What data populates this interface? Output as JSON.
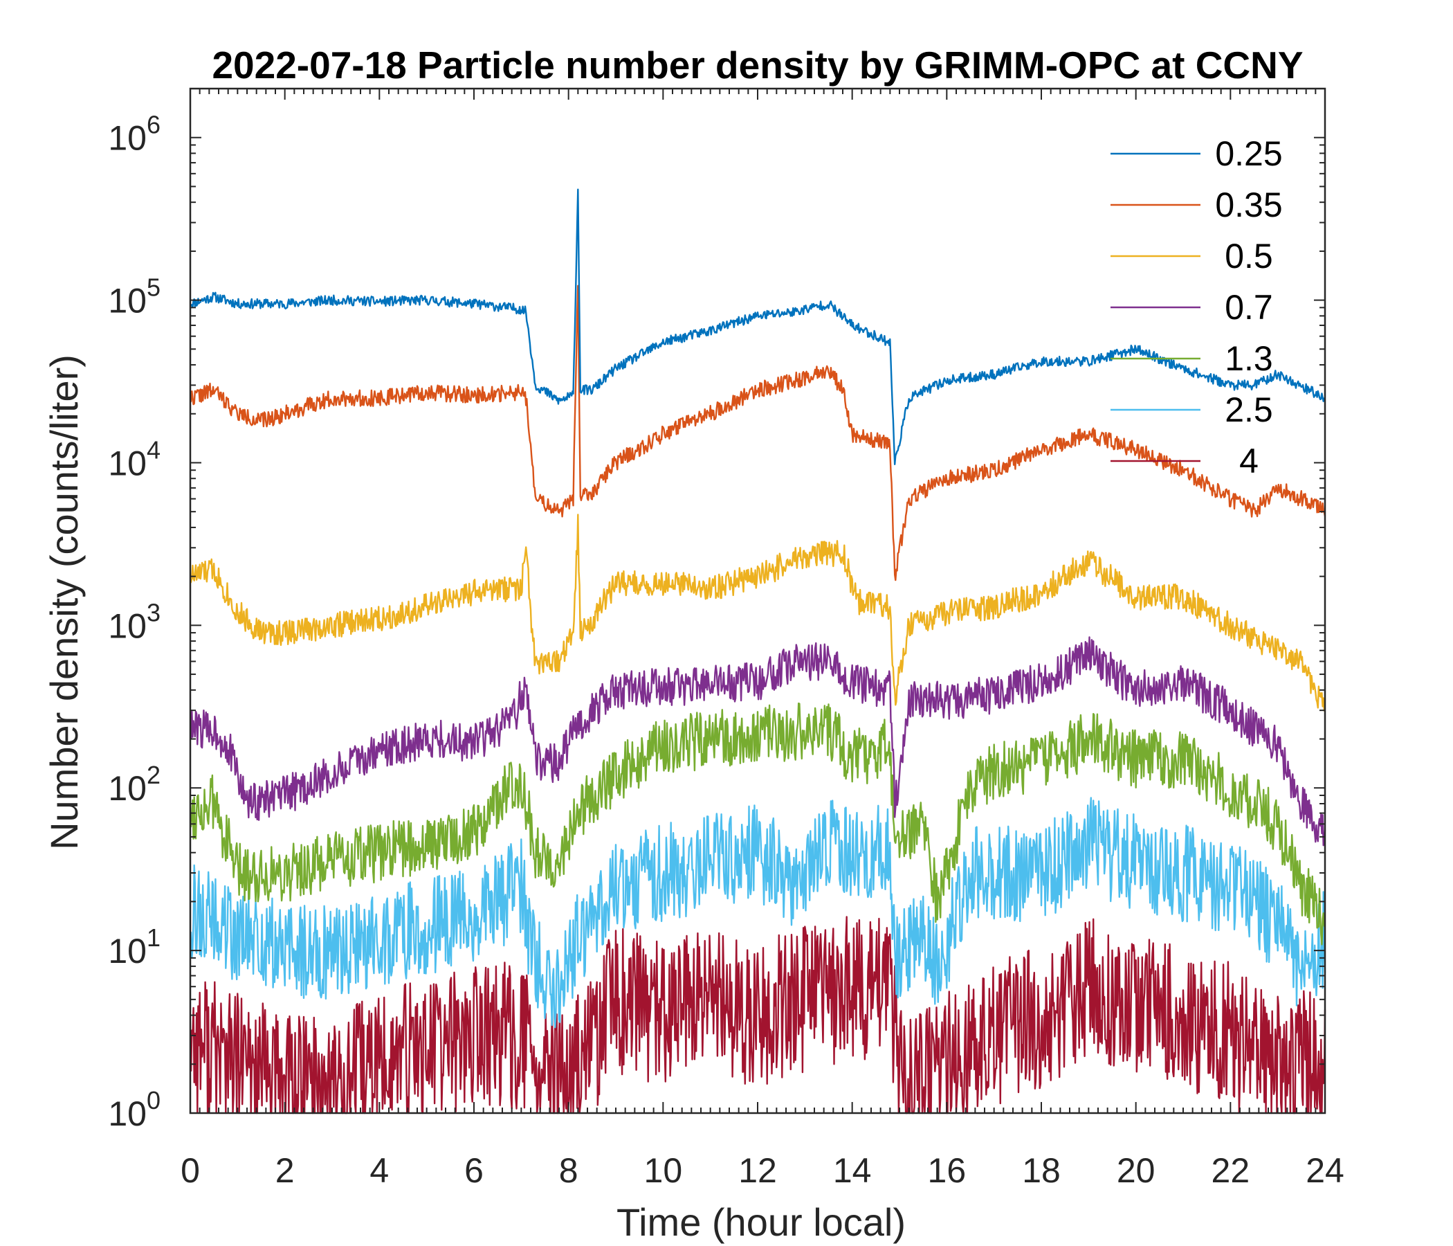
{
  "chart_data": {
    "type": "line",
    "title": "2022-07-18 Particle number density by GRIMM-OPC at CCNY",
    "xlabel": "Time (hour local)",
    "ylabel": "Number density (counts/liter)",
    "xlim": [
      0,
      24
    ],
    "ylim": [
      1,
      2000000
    ],
    "yscale": "log",
    "xticks": [
      0,
      2,
      4,
      6,
      8,
      10,
      12,
      14,
      16,
      18,
      20,
      22,
      24
    ],
    "yticks": [
      {
        "base": "10",
        "exp": "0",
        "value": 1
      },
      {
        "base": "10",
        "exp": "1",
        "value": 10
      },
      {
        "base": "10",
        "exp": "2",
        "value": 100
      },
      {
        "base": "10",
        "exp": "3",
        "value": 1000
      },
      {
        "base": "10",
        "exp": "4",
        "value": 10000
      },
      {
        "base": "10",
        "exp": "5",
        "value": 100000
      },
      {
        "base": "10",
        "exp": "6",
        "value": 1000000
      }
    ],
    "legend_position": "top-right",
    "series": [
      {
        "name": "0.25",
        "color": "#0072BD",
        "x": [
          0,
          0.5,
          1,
          1.5,
          2,
          3,
          4,
          5,
          6,
          7,
          7.1,
          7.3,
          7.8,
          8.1,
          8.2,
          8.25,
          8.5,
          9,
          10,
          11,
          12,
          12.8,
          13.5,
          14,
          14.8,
          14.9,
          15.2,
          16,
          17,
          18,
          19,
          20,
          21,
          22,
          22.5,
          23,
          24
        ],
        "y": [
          95000,
          105000,
          95000,
          95000,
          95000,
          100000,
          98000,
          100000,
          95000,
          88000,
          85000,
          30000,
          24000,
          26000,
          480000,
          28000,
          28000,
          38000,
          55000,
          65000,
          80000,
          85000,
          95000,
          70000,
          55000,
          10000,
          25000,
          32000,
          35000,
          42000,
          42000,
          50000,
          38000,
          30000,
          30000,
          35000,
          25000
        ],
        "noise": 0.03,
        "seed": 11
      },
      {
        "name": "0.35",
        "color": "#D95319",
        "x": [
          0,
          0.5,
          1,
          1.5,
          2,
          3,
          4,
          5,
          6,
          7,
          7.1,
          7.3,
          7.8,
          8.1,
          8.2,
          8.25,
          8.5,
          9,
          10,
          11,
          12,
          12.8,
          13.5,
          13.8,
          14,
          14.8,
          14.9,
          15.2,
          16,
          17,
          18,
          19,
          20,
          21,
          22,
          22.5,
          23,
          23.5,
          24
        ],
        "y": [
          25000,
          28000,
          20000,
          18000,
          20000,
          25000,
          25000,
          27000,
          26000,
          27000,
          25000,
          6000,
          5000,
          6000,
          130000,
          6500,
          6500,
          10000,
          15000,
          20000,
          28000,
          32000,
          38000,
          28000,
          15000,
          13000,
          2000,
          6000,
          8000,
          9000,
          12000,
          15000,
          12000,
          9000,
          6000,
          5000,
          7000,
          6000,
          5000
        ],
        "noise": 0.05,
        "seed": 22
      },
      {
        "name": "0.5",
        "color": "#EDB120",
        "x": [
          0,
          0.5,
          1,
          1.5,
          2,
          3,
          4,
          5,
          6,
          7,
          7.1,
          7.3,
          7.8,
          8.1,
          8.2,
          8.25,
          8.5,
          9,
          10,
          11,
          12,
          13,
          13.8,
          14.1,
          14.8,
          14.9,
          15.2,
          16,
          17,
          18,
          19,
          20,
          21,
          22,
          23,
          23.5,
          24
        ],
        "y": [
          2000,
          2200,
          1200,
          900,
          900,
          1000,
          1100,
          1300,
          1600,
          1700,
          2800,
          550,
          600,
          900,
          4000,
          900,
          1100,
          1800,
          1800,
          1700,
          2000,
          2700,
          2800,
          1400,
          1300,
          350,
          1000,
          1200,
          1300,
          1600,
          2500,
          1500,
          1500,
          1000,
          700,
          600,
          300
        ],
        "noise": 0.08,
        "seed": 33
      },
      {
        "name": "0.7",
        "color": "#7E2F8E",
        "x": [
          0,
          0.5,
          0.8,
          1.2,
          2,
          3,
          4,
          5,
          6,
          6.8,
          7.1,
          7.3,
          7.8,
          8.2,
          9,
          10,
          11,
          12,
          12.8,
          13.5,
          14,
          14.8,
          14.9,
          15.2,
          16,
          17,
          18,
          19,
          20,
          21,
          22,
          23,
          23.5,
          24
        ],
        "y": [
          230,
          230,
          180,
          80,
          90,
          120,
          170,
          200,
          190,
          250,
          450,
          150,
          140,
          250,
          400,
          420,
          430,
          450,
          600,
          600,
          450,
          400,
          80,
          350,
          340,
          380,
          450,
          650,
          400,
          450,
          300,
          180,
          80,
          50
        ],
        "noise": 0.12,
        "seed": 44
      },
      {
        "name": "1.3",
        "color": "#77AC30",
        "x": [
          0,
          0.5,
          1,
          2,
          3,
          4,
          5,
          6,
          7,
          7.3,
          7.8,
          8.2,
          9,
          10,
          11,
          12,
          12.8,
          13.5,
          14,
          14.8,
          14.9,
          15.5,
          15.8,
          16.5,
          17,
          18,
          19,
          20,
          21,
          22,
          23,
          23.5,
          24
        ],
        "y": [
          70,
          80,
          30,
          30,
          35,
          40,
          45,
          55,
          120,
          40,
          35,
          70,
          120,
          180,
          200,
          210,
          220,
          230,
          150,
          180,
          50,
          60,
          20,
          100,
          130,
          140,
          200,
          150,
          150,
          100,
          60,
          25,
          15
        ],
        "noise": 0.18,
        "seed": 55
      },
      {
        "name": "2.5",
        "color": "#4DBEEE",
        "x": [
          0,
          0.5,
          1,
          2,
          3,
          4,
          5,
          6,
          7,
          7.3,
          7.8,
          8.2,
          9,
          10,
          11,
          12,
          12.8,
          13.5,
          14,
          14.8,
          14.9,
          15.5,
          15.8,
          16.5,
          17,
          18,
          19,
          20,
          21,
          22,
          23,
          23.5,
          24
        ],
        "y": [
          18,
          15,
          12,
          10,
          10,
          12,
          14,
          16,
          25,
          8,
          6,
          12,
          25,
          30,
          35,
          40,
          25,
          45,
          40,
          45,
          8,
          12,
          8,
          30,
          30,
          30,
          45,
          35,
          30,
          25,
          15,
          8,
          12
        ],
        "noise": 0.3,
        "seed": 66
      },
      {
        "name": "4",
        "color": "#A2142F",
        "x": [
          0,
          1,
          2,
          3,
          4,
          5,
          6,
          7,
          7.5,
          8,
          9,
          10,
          11,
          12,
          13,
          14,
          14.8,
          15,
          16,
          17,
          18,
          19,
          20,
          21,
          22,
          23,
          24
        ],
        "y": [
          3,
          2,
          1.5,
          1.5,
          2,
          2.5,
          3,
          3,
          1.5,
          1.5,
          5,
          4,
          5,
          4,
          5,
          6,
          6,
          1.5,
          2,
          3,
          4,
          6,
          5,
          4,
          3,
          2,
          2
        ],
        "noise": 0.45,
        "seed": 77
      }
    ]
  }
}
